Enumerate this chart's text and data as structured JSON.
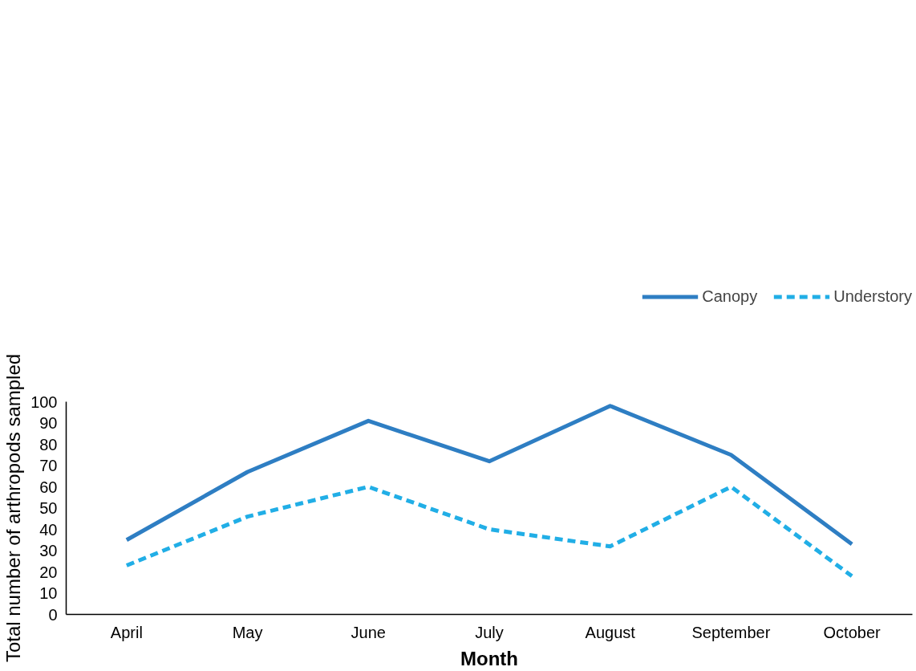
{
  "chart_data": {
    "type": "line",
    "xlabel": "Month",
    "ylabel": "Total number of arthropods sampled",
    "categories": [
      "April",
      "May",
      "June",
      "July",
      "August",
      "September",
      "October"
    ],
    "series": [
      {
        "name": "Canopy",
        "color": "#2e7ec3",
        "line_style": "solid",
        "values": [
          35,
          67,
          91,
          72,
          98,
          75,
          33
        ]
      },
      {
        "name": "Understory",
        "color": "#21aee6",
        "line_style": "dashed",
        "values": [
          23,
          46,
          60,
          40,
          32,
          60,
          18
        ]
      }
    ],
    "ylim": [
      0,
      100
    ],
    "yticks": [
      0,
      10,
      20,
      30,
      40,
      50,
      60,
      70,
      80,
      90,
      100
    ],
    "grid": false,
    "legend": "top right",
    "marker": "none"
  }
}
